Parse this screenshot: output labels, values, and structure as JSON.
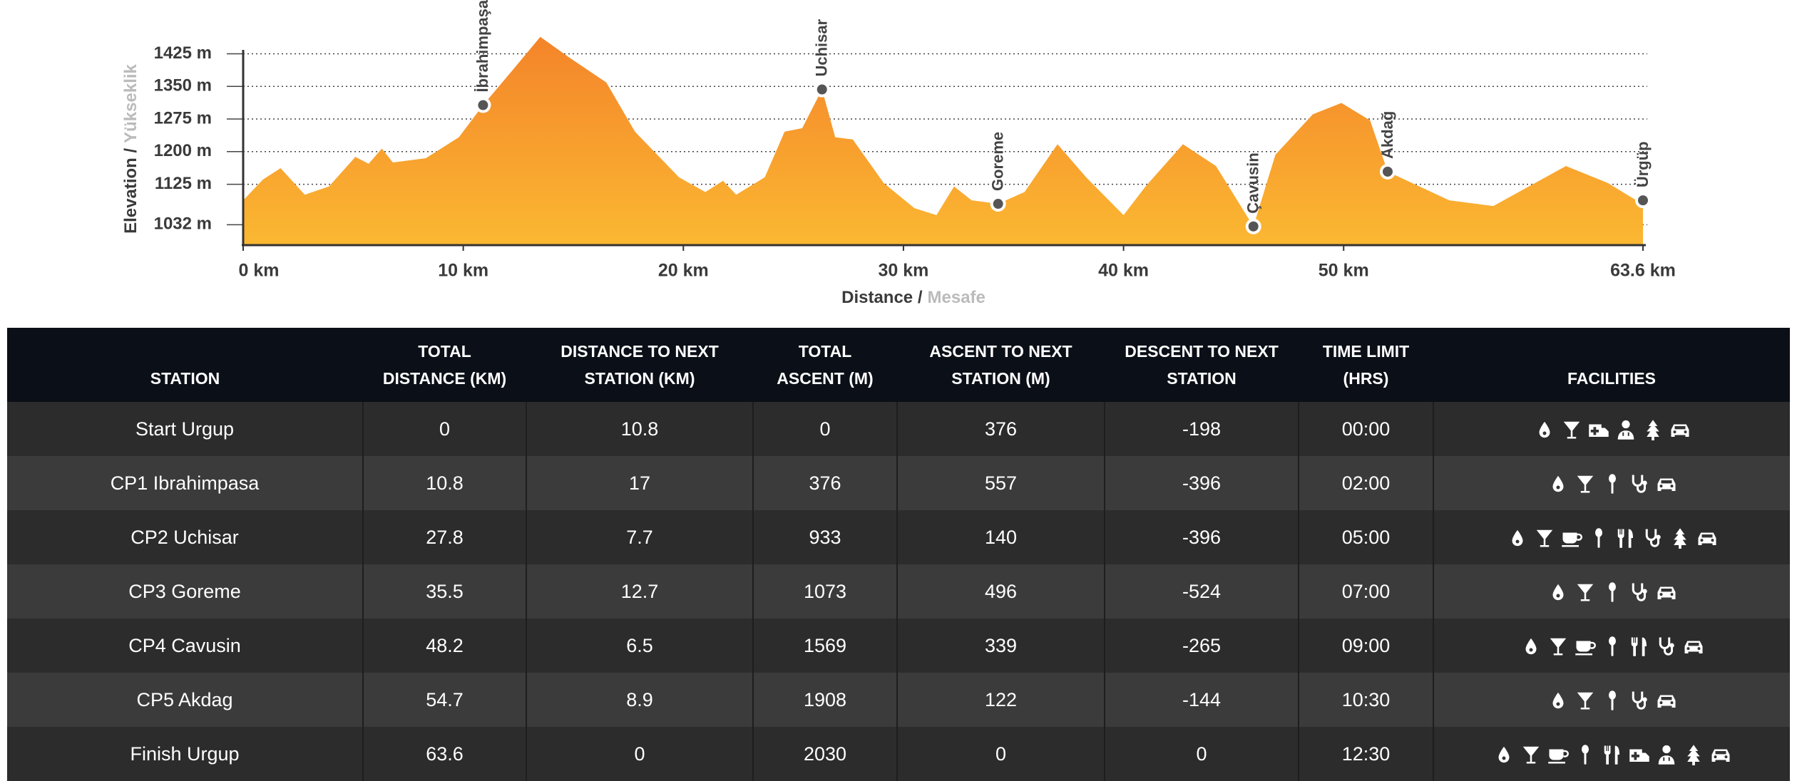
{
  "chart_data": {
    "type": "area",
    "ylabel": "Elevation /",
    "ylabel_alt": "Yükseklik",
    "xlabel": "Distance /",
    "xlabel_alt": "Mesafe",
    "color_top": "#f4842a",
    "color_bottom": "#fbb832",
    "x": [
      0,
      0.9,
      1.7,
      2.8,
      3.9,
      5.1,
      5.7,
      6.3,
      6.8,
      8.3,
      9.8,
      10.9,
      12.3,
      13.5,
      14.8,
      16.5,
      17.8,
      19.8,
      21.0,
      21.8,
      22.4,
      23.7,
      24.6,
      25.4,
      26.3,
      26.9,
      27.7,
      29.1,
      30.5,
      31.5,
      32.3,
      33.1,
      34.3,
      35.5,
      37.0,
      38.3,
      40.0,
      41.0,
      42.7,
      44.2,
      45.9,
      46.9,
      48.6,
      49.9,
      51.2,
      52.0,
      54.8,
      56.8,
      60.1,
      62.0,
      63.3,
      63.6
    ],
    "values": [
      1088,
      1136,
      1162,
      1101,
      1120,
      1188,
      1172,
      1207,
      1175,
      1185,
      1233,
      1307,
      1391,
      1464,
      1417,
      1359,
      1246,
      1141,
      1107,
      1133,
      1101,
      1141,
      1246,
      1254,
      1343,
      1233,
      1228,
      1128,
      1070,
      1054,
      1120,
      1088,
      1080,
      1107,
      1217,
      1141,
      1054,
      1120,
      1217,
      1167,
      1028,
      1193,
      1286,
      1312,
      1272,
      1154,
      1088,
      1075,
      1167,
      1128,
      1088,
      1088
    ],
    "xlim": [
      0,
      63.6
    ],
    "ylim": [
      985,
      1475
    ],
    "xticks": [
      {
        "value": 0,
        "label": "0 km"
      },
      {
        "value": 10,
        "label": "10 km"
      },
      {
        "value": 20,
        "label": "20 km"
      },
      {
        "value": 30,
        "label": "30 km"
      },
      {
        "value": 40,
        "label": "40 km"
      },
      {
        "value": 50,
        "label": "50 km"
      },
      {
        "value": 63.6,
        "label": "63.6 km"
      }
    ],
    "yticks": [
      {
        "value": 1032,
        "label": "1032 m"
      },
      {
        "value": 1125,
        "label": "1125 m"
      },
      {
        "value": 1200,
        "label": "1200 m"
      },
      {
        "value": 1275,
        "label": "1275 m"
      },
      {
        "value": 1350,
        "label": "1350 m"
      },
      {
        "value": 1425,
        "label": "1425 m"
      }
    ],
    "grid": true,
    "stations": [
      {
        "name": "İbrahimpaşa",
        "x": 10.9,
        "y": 1307
      },
      {
        "name": "Uchisar",
        "x": 26.3,
        "y": 1343
      },
      {
        "name": "Goreme",
        "x": 34.3,
        "y": 1080
      },
      {
        "name": "Çavusin",
        "x": 45.9,
        "y": 1028
      },
      {
        "name": "Akdağ",
        "x": 52.0,
        "y": 1154
      },
      {
        "name": "Ürgüp",
        "x": 63.6,
        "y": 1088
      }
    ]
  },
  "table": {
    "headers": [
      "STATION",
      "TOTAL DISTANCE (KM)",
      "DISTANCE TO NEXT STATION (KM)",
      "TOTAL ASCENT (M)",
      "ASCENT TO NEXT STATION (M)",
      "DESCENT TO NEXT STATION",
      "TIME LIMIT (HRS)",
      "FACILITIES"
    ],
    "rows": [
      [
        "Start Urgup",
        "0",
        "10.8",
        "0",
        "376",
        "-198",
        "00:00"
      ],
      [
        "CP1 Ibrahimpasa",
        "10.8",
        "17",
        "376",
        "557",
        "-396",
        "02:00"
      ],
      [
        "CP2 Uchisar",
        "27.8",
        "7.7",
        "933",
        "140",
        "-396",
        "05:00"
      ],
      [
        "CP3 Goreme",
        "35.5",
        "12.7",
        "1073",
        "496",
        "-524",
        "07:00"
      ],
      [
        "CP4 Cavusin",
        "48.2",
        "6.5",
        "1569",
        "339",
        "-265",
        "09:00"
      ],
      [
        "CP5 Akdag",
        "54.7",
        "8.9",
        "1908",
        "122",
        "-144",
        "10:30"
      ],
      [
        "Finish Urgup",
        "63.6",
        "0",
        "2030",
        "0",
        "0",
        "12:30"
      ]
    ]
  }
}
